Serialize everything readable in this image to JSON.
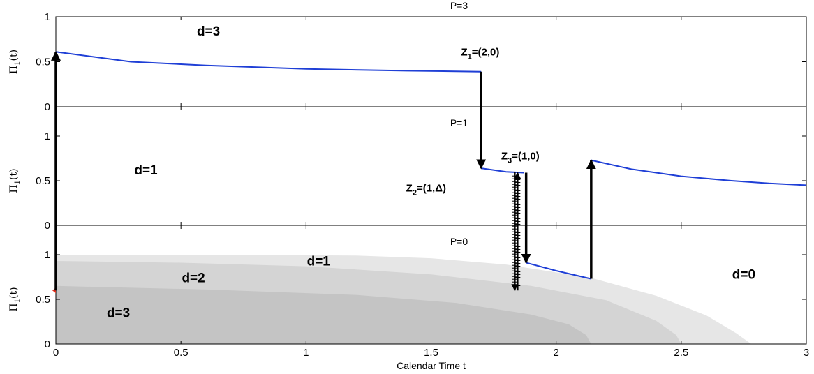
{
  "chart_data": {
    "type": "line",
    "xlabel": "Calendar Time t",
    "xlim": [
      0,
      3
    ],
    "x_ticks": [
      0,
      0.5,
      1,
      1.5,
      2,
      2.5,
      3
    ],
    "x_tick_labels": [
      "0",
      "0.5",
      "1",
      "1.5",
      "2",
      "2.5",
      "3"
    ],
    "colors": {
      "line": "#1f3fd6",
      "arrow": "#000000",
      "region_light": "#e6e6e6",
      "region_mid": "#d4d4d4",
      "region_dark": "#c4c4c4",
      "marker": "#e0301e"
    },
    "panels": [
      {
        "id": "p3",
        "title": "P=3",
        "ylabel_main": "Π",
        "ylabel_sub": "1",
        "ylabel_tail": "(t)",
        "ylim": [
          0,
          1
        ],
        "y_ticks": [
          0,
          0.5,
          1
        ],
        "y_tick_labels": [
          "0",
          "0.5",
          "1"
        ],
        "regions": [],
        "region_labels": [
          {
            "text": "d=3",
            "x": 0.61,
            "y": 0.79
          }
        ],
        "series": [
          {
            "points": [
              [
                0,
                0.61
              ],
              [
                0.3,
                0.5
              ],
              [
                0.6,
                0.46
              ],
              [
                1.0,
                0.42
              ],
              [
                1.4,
                0.4
              ],
              [
                1.7,
                0.39
              ]
            ]
          }
        ]
      },
      {
        "id": "p1",
        "title": "P=1",
        "ylabel_main": "Π",
        "ylabel_sub": "1",
        "ylabel_tail": "(t)",
        "ylim": [
          0,
          1
        ],
        "y_ticks": [
          0,
          0.5,
          1
        ],
        "y_tick_labels": [
          "0",
          "0.5",
          "1"
        ],
        "regions": [],
        "region_labels": [
          {
            "text": "d=1",
            "x": 0.36,
            "y": 0.57
          }
        ],
        "series": [
          {
            "points": [
              [
                1.7,
                0.64
              ],
              [
                1.8,
                0.6
              ],
              [
                1.87,
                0.59
              ]
            ]
          },
          {
            "points": [
              [
                2.14,
                0.73
              ],
              [
                2.3,
                0.63
              ],
              [
                2.5,
                0.55
              ],
              [
                2.7,
                0.5
              ],
              [
                2.85,
                0.47
              ],
              [
                3.0,
                0.45
              ]
            ]
          }
        ]
      },
      {
        "id": "p0",
        "title": "P=0",
        "ylabel_main": "Π",
        "ylabel_sub": "1",
        "ylabel_tail": "(t)",
        "ylim": [
          0,
          1
        ],
        "y_ticks": [
          0,
          0.5,
          1
        ],
        "y_tick_labels": [
          "0",
          "0.5",
          "1"
        ],
        "regions": [
          {
            "shade": "light",
            "points": [
              [
                0,
                1
              ],
              [
                0.6,
                1
              ],
              [
                1.2,
                0.99
              ],
              [
                1.5,
                0.96
              ],
              [
                1.8,
                0.89
              ],
              [
                2.14,
                0.74
              ],
              [
                2.4,
                0.54
              ],
              [
                2.6,
                0.32
              ],
              [
                2.72,
                0.12
              ],
              [
                2.78,
                0
              ]
            ]
          },
          {
            "shade": "mid",
            "points": [
              [
                0,
                0.93
              ],
              [
                0.5,
                0.91
              ],
              [
                1.0,
                0.87
              ],
              [
                1.5,
                0.78
              ],
              [
                1.9,
                0.65
              ],
              [
                2.2,
                0.49
              ],
              [
                2.4,
                0.26
              ],
              [
                2.48,
                0.1
              ],
              [
                2.5,
                0
              ]
            ]
          },
          {
            "shade": "dark",
            "points": [
              [
                0,
                0.65
              ],
              [
                0.6,
                0.61
              ],
              [
                1.2,
                0.55
              ],
              [
                1.6,
                0.46
              ],
              [
                1.9,
                0.33
              ],
              [
                2.05,
                0.22
              ],
              [
                2.12,
                0.1
              ],
              [
                2.14,
                0
              ]
            ]
          }
        ],
        "region_labels": [
          {
            "text": "d=1",
            "x": 1.05,
            "y": 0.88
          },
          {
            "text": "d=2",
            "x": 0.55,
            "y": 0.69
          },
          {
            "text": "d=3",
            "x": 0.25,
            "y": 0.3
          },
          {
            "text": "d=0",
            "x": 2.75,
            "y": 0.73
          }
        ],
        "series": [
          {
            "points": [
              [
                1.88,
                0.91
              ],
              [
                2.0,
                0.82
              ],
              [
                2.14,
                0.73
              ]
            ]
          }
        ],
        "marker": {
          "x": 0,
          "y": 0.6
        }
      }
    ],
    "annotations": [
      {
        "main": "Z",
        "sub": "1",
        "tail": "=(2,0)",
        "panel": "p3",
        "x": 1.62,
        "y": 0.57
      },
      {
        "main": "Z",
        "sub": "3",
        "tail": "=(1,0)",
        "panel": "p1",
        "x": 1.78,
        "y": 0.74
      },
      {
        "main": "Z",
        "sub": "2",
        "tail": "=(1,Δ)",
        "panel": "p1",
        "x": 1.4,
        "y": 0.38
      }
    ],
    "transitions": [
      {
        "from_panel": "p0",
        "from_y": 0.6,
        "to_panel": "p3",
        "to_y": 0.61,
        "x": 0,
        "style": "solid"
      },
      {
        "from_panel": "p3",
        "from_y": 0.39,
        "to_panel": "p1",
        "to_y": 0.64,
        "x": 1.7,
        "style": "solid"
      },
      {
        "from_panel": "p1",
        "from_y": 0.6,
        "to_panel": "p0",
        "to_y": 0.6,
        "x": 1.84,
        "style": "hatched"
      },
      {
        "from_panel": "p0",
        "from_y": 0.6,
        "to_panel": "p1",
        "to_y": 0.59,
        "x": 1.84,
        "style": "hatched"
      },
      {
        "from_panel": "p1",
        "from_y": 0.59,
        "to_panel": "p0",
        "to_y": 0.91,
        "x": 1.88,
        "style": "solid"
      },
      {
        "from_panel": "p0",
        "from_y": 0.73,
        "to_panel": "p1",
        "to_y": 0.73,
        "x": 2.14,
        "style": "solid"
      }
    ]
  }
}
